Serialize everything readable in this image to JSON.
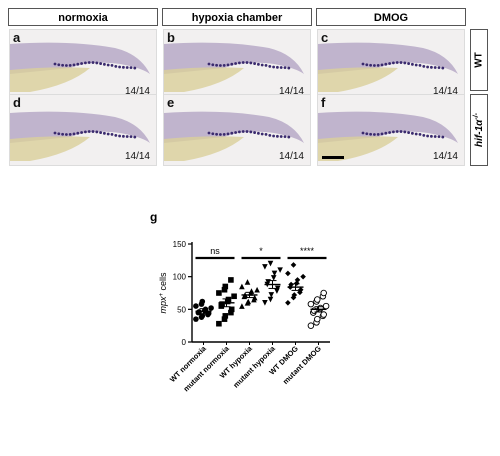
{
  "columns": [
    "normoxia",
    "hypoxia chamber",
    "DMOG"
  ],
  "rows": {
    "wt": "WT",
    "mutant": "hif-1α",
    "mutant_sup": "-/-"
  },
  "panels": [
    {
      "letter": "a",
      "count": "14/14"
    },
    {
      "letter": "b",
      "count": "14/14"
    },
    {
      "letter": "c",
      "count": "14/14"
    },
    {
      "letter": "d",
      "count": "14/14"
    },
    {
      "letter": "e",
      "count": "14/14"
    },
    {
      "letter": "f",
      "count": "14/14"
    }
  ],
  "colors": {
    "embryo": "#b7a9c7",
    "yolk": "#d9cf9a",
    "stain": "#3a2a6e"
  },
  "chart_data": {
    "type": "scatter",
    "panel_letter": "g",
    "ylabel": "mpx+ cells",
    "ylabel_italic": "mpx",
    "ylabel_sup": "+",
    "ylabel_rest": " cells",
    "ylim": [
      0,
      150
    ],
    "yticks": [
      0,
      50,
      100,
      150
    ],
    "categories": [
      "WT normoxia",
      "mutant normoxia",
      "WT hypoxia",
      "mutant hypoxia",
      "WT DMOG",
      "mutant DMOG"
    ],
    "series": [
      {
        "marker": "circle-filled",
        "mean": 47,
        "sem": 4,
        "values": [
          35,
          38,
          40,
          42,
          44,
          45,
          46,
          48,
          50,
          52,
          55,
          58,
          62
        ]
      },
      {
        "marker": "square-filled",
        "mean": 60,
        "sem": 6,
        "values": [
          28,
          35,
          40,
          45,
          50,
          55,
          58,
          62,
          65,
          70,
          75,
          80,
          85,
          95
        ]
      },
      {
        "marker": "triangle-up",
        "mean": 72,
        "sem": 4,
        "values": [
          55,
          60,
          62,
          65,
          68,
          70,
          72,
          75,
          78,
          80,
          85,
          92
        ]
      },
      {
        "marker": "triangle-down",
        "mean": 88,
        "sem": 6,
        "values": [
          60,
          65,
          72,
          78,
          82,
          88,
          92,
          98,
          105,
          110,
          115,
          120
        ]
      },
      {
        "marker": "diamond-filled",
        "mean": 84,
        "sem": 5,
        "values": [
          60,
          68,
          72,
          76,
          80,
          84,
          88,
          90,
          95,
          100,
          105,
          118
        ]
      },
      {
        "marker": "circle-open",
        "mean": 50,
        "sem": 4,
        "values": [
          25,
          30,
          35,
          40,
          42,
          45,
          48,
          50,
          52,
          55,
          58,
          62,
          65,
          70,
          75
        ]
      }
    ],
    "comparisons": [
      {
        "from": 0,
        "to": 1,
        "label": "ns"
      },
      {
        "from": 2,
        "to": 3,
        "label": "*"
      },
      {
        "from": 4,
        "to": 5,
        "label": "****"
      }
    ]
  }
}
